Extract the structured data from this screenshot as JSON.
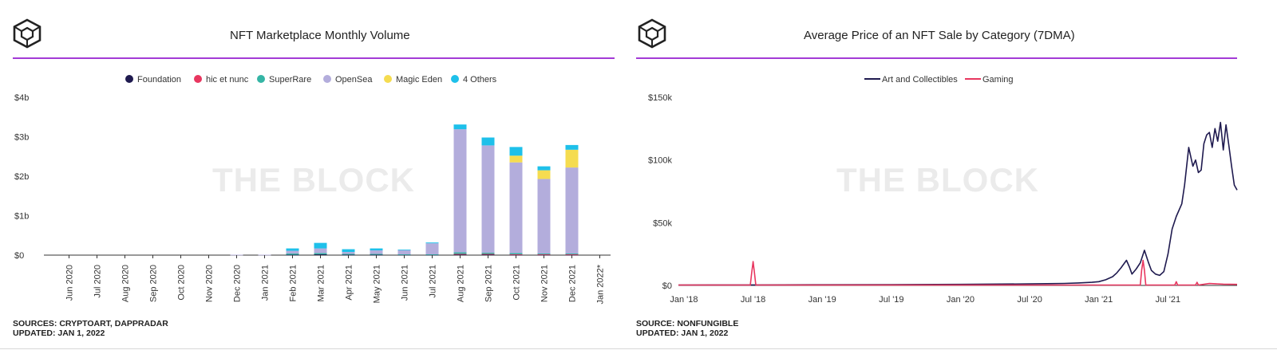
{
  "branding": {
    "logo_icon": "the-block-cube-logo",
    "watermark": "THE BLOCK",
    "accent_color": "#a33bd6"
  },
  "chart_data": [
    {
      "type": "bar",
      "stacked": true,
      "title": "NFT Marketplace Monthly Volume",
      "xlabel": "",
      "ylabel": "",
      "ylim": [
        0,
        4
      ],
      "y_ticks": [
        "$0",
        "$1b",
        "$2b",
        "$3b",
        "$4b"
      ],
      "legend_position": "top-center",
      "categories": [
        "Jun 2020",
        "Jul 2020",
        "Aug 2020",
        "Sep 2020",
        "Oct 2020",
        "Nov 2020",
        "Dec 2020",
        "Jan 2021",
        "Feb 2021",
        "Mar 2021",
        "Apr 2021",
        "May 2021",
        "Jun 2021",
        "Jul 2021",
        "Aug 2021",
        "Sep 2021",
        "Oct 2021",
        "Nov 2021",
        "Dec 2021",
        "Jan 2022*"
      ],
      "series": [
        {
          "name": "Foundation",
          "color": "#1f1a4f",
          "values": [
            0,
            0,
            0,
            0,
            0,
            0,
            0,
            0,
            0.01,
            0.02,
            0.01,
            0.01,
            0.01,
            0.01,
            0.02,
            0.02,
            0.01,
            0.01,
            0.01,
            0
          ]
        },
        {
          "name": "hic et nunc",
          "color": "#e8365f",
          "values": [
            0,
            0,
            0,
            0,
            0,
            0,
            0,
            0,
            0,
            0,
            0,
            0,
            0,
            0,
            0.01,
            0.01,
            0.01,
            0.01,
            0.01,
            0
          ]
        },
        {
          "name": "SuperRare",
          "color": "#35b5a5",
          "values": [
            0,
            0,
            0,
            0,
            0,
            0,
            0,
            0,
            0.03,
            0.03,
            0.02,
            0.02,
            0.01,
            0.01,
            0.04,
            0.03,
            0.03,
            0.02,
            0.02,
            0
          ]
        },
        {
          "name": "OpenSea",
          "color": "#b3addc",
          "values": [
            0,
            0,
            0,
            0,
            0,
            0,
            0.01,
            0.01,
            0.07,
            0.12,
            0.05,
            0.09,
            0.11,
            0.28,
            3.12,
            2.72,
            2.3,
            1.89,
            2.18,
            0
          ]
        },
        {
          "name": "Magic Eden",
          "color": "#f5dc50",
          "values": [
            0,
            0,
            0,
            0,
            0,
            0,
            0,
            0,
            0,
            0,
            0,
            0,
            0,
            0,
            0,
            0,
            0.17,
            0.22,
            0.45,
            0
          ]
        },
        {
          "name": "4 Others",
          "color": "#1ec0ea",
          "values": [
            0,
            0,
            0,
            0,
            0,
            0,
            0,
            0,
            0.06,
            0.14,
            0.07,
            0.05,
            0.01,
            0.02,
            0.12,
            0.2,
            0.22,
            0.1,
            0.12,
            0
          ]
        }
      ],
      "sources": "SOURCES: CRYPTOART, DAPPRADAR",
      "updated": "UPDATED: JAN 1, 2022"
    },
    {
      "type": "line",
      "title": "Average Price of an NFT Sale by Category (7DMA)",
      "xlabel": "",
      "ylabel": "",
      "xlim": [
        2017.96,
        2022.0
      ],
      "ylim": [
        0,
        150000
      ],
      "y_ticks": [
        "$0",
        "$50k",
        "$100k",
        "$150k"
      ],
      "x_ticks": [
        {
          "label": "Jan '18",
          "x": 2018.0
        },
        {
          "label": "Jul '18",
          "x": 2018.5
        },
        {
          "label": "Jan '19",
          "x": 2019.0
        },
        {
          "label": "Jul '19",
          "x": 2019.5
        },
        {
          "label": "Jan '20",
          "x": 2020.0
        },
        {
          "label": "Jul '20",
          "x": 2020.5
        },
        {
          "label": "Jan '21",
          "x": 2021.0
        },
        {
          "label": "Jul '21",
          "x": 2021.5
        }
      ],
      "legend_position": "top-center",
      "series": [
        {
          "name": "Art and Collectibles",
          "color": "#1f1a4f",
          "x": [
            2017.96,
            2018.5,
            2019.0,
            2019.5,
            2020.0,
            2020.5,
            2020.75,
            2020.85,
            2020.95,
            2021.0,
            2021.05,
            2021.1,
            2021.13,
            2021.16,
            2021.2,
            2021.22,
            2021.24,
            2021.27,
            2021.3,
            2021.33,
            2021.36,
            2021.38,
            2021.41,
            2021.44,
            2021.47,
            2021.5,
            2021.53,
            2021.56,
            2021.6,
            2021.62,
            2021.65,
            2021.68,
            2021.7,
            2021.72,
            2021.74,
            2021.76,
            2021.78,
            2021.8,
            2021.82,
            2021.84,
            2021.86,
            2021.88,
            2021.9,
            2021.92,
            2021.94,
            2021.96,
            2021.98,
            2022.0
          ],
          "y": [
            300,
            400,
            500,
            600,
            800,
            1200,
            1600,
            2000,
            2500,
            3000,
            4500,
            7000,
            10000,
            14000,
            20000,
            15000,
            9000,
            13000,
            18000,
            28000,
            18000,
            12000,
            9000,
            8000,
            11000,
            25000,
            45000,
            55000,
            65000,
            80000,
            110000,
            95000,
            100000,
            90000,
            92000,
            113000,
            120000,
            122000,
            110000,
            125000,
            115000,
            130000,
            108000,
            128000,
            112000,
            95000,
            80000,
            76000
          ]
        },
        {
          "name": "Gaming",
          "color": "#e8365f",
          "x": [
            2017.96,
            2018.48,
            2018.49,
            2018.5,
            2018.51,
            2018.52,
            2019.0,
            2019.5,
            2020.0,
            2020.5,
            2021.0,
            2021.3,
            2021.31,
            2021.32,
            2021.33,
            2021.34,
            2021.35,
            2021.5,
            2021.55,
            2021.56,
            2021.57,
            2021.6,
            2021.7,
            2021.71,
            2021.72,
            2021.8,
            2021.9,
            2022.0
          ],
          "y": [
            300,
            300,
            10000,
            19000,
            10000,
            300,
            300,
            300,
            300,
            300,
            300,
            300,
            12000,
            20000,
            12000,
            300,
            300,
            300,
            300,
            3000,
            300,
            300,
            300,
            2500,
            300,
            1500,
            1000,
            800
          ]
        }
      ],
      "sources": "SOURCE: NONFUNGIBLE",
      "updated": "UPDATED: JAN 1, 2022"
    }
  ]
}
